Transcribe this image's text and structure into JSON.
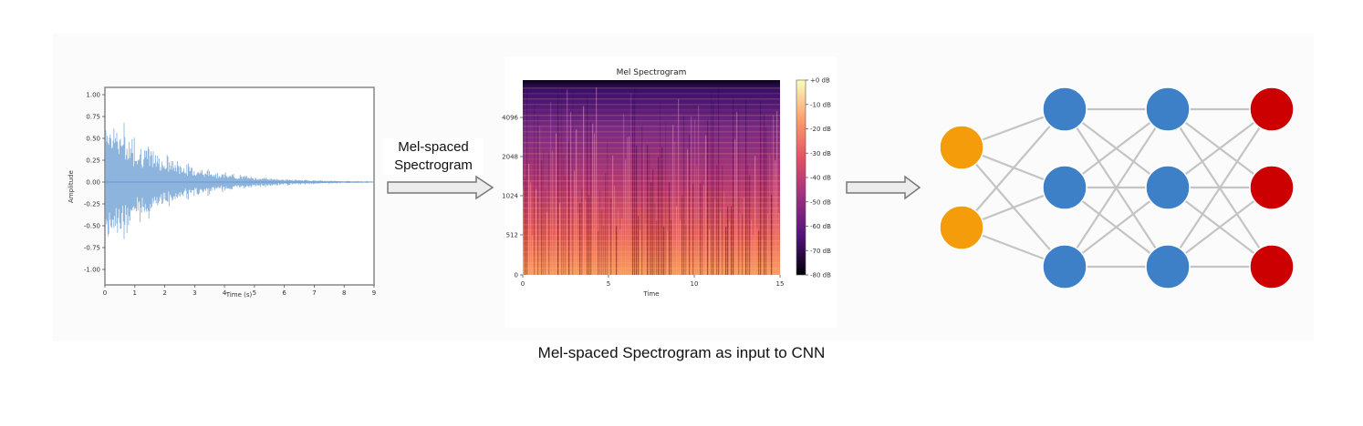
{
  "caption": "Mel-spaced Spectrogram as input to CNN",
  "arrow_label_line1": "Mel-spaced",
  "arrow_label_line2": "Spectrogram",
  "waveform": {
    "ylabel": "Amplitude",
    "xlabel": "Time (s)",
    "yticks": [
      "1.00",
      "0.75",
      "0.50",
      "0.25",
      "0.00",
      "-0.25",
      "-0.50",
      "-0.75",
      "-1.00"
    ],
    "xticks": [
      "0",
      "1",
      "2",
      "3",
      "4",
      "5",
      "6",
      "7",
      "8",
      "9"
    ],
    "color": "#7aa7d8"
  },
  "spectrogram": {
    "title": "Mel Spectrogram",
    "xlabel": "Time",
    "yticks": [
      "4096",
      "2048",
      "1024",
      "512",
      "0"
    ],
    "xticks": [
      "0",
      "5",
      "10",
      "15"
    ],
    "colorbar_ticks": [
      "+0 dB",
      "-10 dB",
      "-20 dB",
      "-30 dB",
      "-40 dB",
      "-50 dB",
      "-60 dB",
      "-70 dB",
      "-80 dB"
    ]
  },
  "network": {
    "layers": [
      {
        "nodes": 2,
        "color": "#f59c0b"
      },
      {
        "nodes": 3,
        "color": "#3d80c8"
      },
      {
        "nodes": 3,
        "color": "#3d80c8"
      },
      {
        "nodes": 3,
        "color": "#cc0000"
      }
    ],
    "edge_color": "#c4c4c4"
  }
}
